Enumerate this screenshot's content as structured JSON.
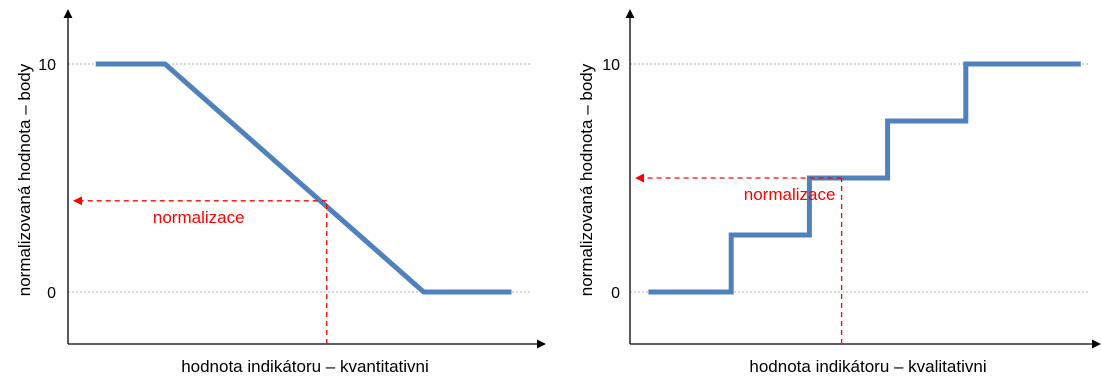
{
  "colors": {
    "line": "#4f81bd",
    "annotation": "#ff0000",
    "axis": "#000000",
    "gridline": "#b0b0b0"
  },
  "chart_data": [
    {
      "type": "line",
      "title": "",
      "xlabel": "hodnota indikátoru – kvantitativni",
      "ylabel": "normalizovaná hodnota – body",
      "ylim": [
        -2.3,
        11.8
      ],
      "xlim": [
        0,
        10
      ],
      "yticks": [
        {
          "value": 0,
          "label": "0"
        },
        {
          "value": 10,
          "label": "10"
        }
      ],
      "grid": "dotted horizontal lines at 0 and 10",
      "series": [
        {
          "x": [
            0.6,
            2.1,
            7.7,
            9.6
          ],
          "y": [
            10,
            10,
            0,
            0
          ]
        }
      ],
      "annotation": {
        "text": "normalizace",
        "x": 5.6,
        "y": 4
      }
    },
    {
      "type": "line",
      "title": "",
      "xlabel": "hodnota indikátoru – kvalitativni",
      "ylabel": "normalizovaná hodnota – body",
      "ylim": [
        -2.3,
        11.8
      ],
      "xlim": [
        0,
        10
      ],
      "yticks": [
        {
          "value": 0,
          "label": "0"
        },
        {
          "value": 10,
          "label": "10"
        }
      ],
      "grid": "dotted horizontal lines at 0 and 10",
      "series": [
        {
          "x": [
            0.4,
            2.2,
            2.2,
            3.9,
            3.9,
            5.6,
            5.6,
            7.3,
            7.3,
            9.8
          ],
          "y": [
            0,
            0,
            2.5,
            2.5,
            5,
            5,
            7.5,
            7.5,
            10,
            10
          ]
        }
      ],
      "annotation": {
        "text": "normalizace",
        "x": 4.6,
        "y": 5
      }
    }
  ]
}
